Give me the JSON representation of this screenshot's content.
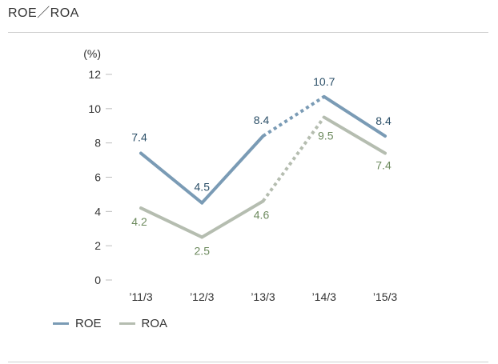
{
  "page": {
    "title": "ROE／ROA"
  },
  "chart_data": {
    "type": "line",
    "title": "ROE／ROA",
    "ylabel": "(%)",
    "xlabel": "",
    "categories": [
      "’11/3",
      "’12/3",
      "’13/3",
      "’14/3",
      "’15/3"
    ],
    "ylim": [
      0,
      12
    ],
    "yticks": [
      0,
      2,
      4,
      6,
      8,
      10,
      12
    ],
    "grid": false,
    "legend_position": "bottom-left",
    "series": [
      {
        "name": "ROE",
        "color": "#7a9bb5",
        "label_color": "#2b4f68",
        "values": [
          7.4,
          4.5,
          8.4,
          10.7,
          8.4
        ],
        "value_labels": [
          "7.4",
          "4.5",
          "8.4",
          "10.7",
          "8.4"
        ],
        "dotted_segments": [
          2
        ]
      },
      {
        "name": "ROA",
        "color": "#b5bdb0",
        "label_color": "#6d8a5e",
        "values": [
          4.2,
          2.5,
          4.6,
          9.5,
          7.4
        ],
        "value_labels": [
          "4.2",
          "2.5",
          "4.6",
          "9.5",
          "7.4"
        ],
        "dotted_segments": [
          2
        ]
      }
    ]
  }
}
